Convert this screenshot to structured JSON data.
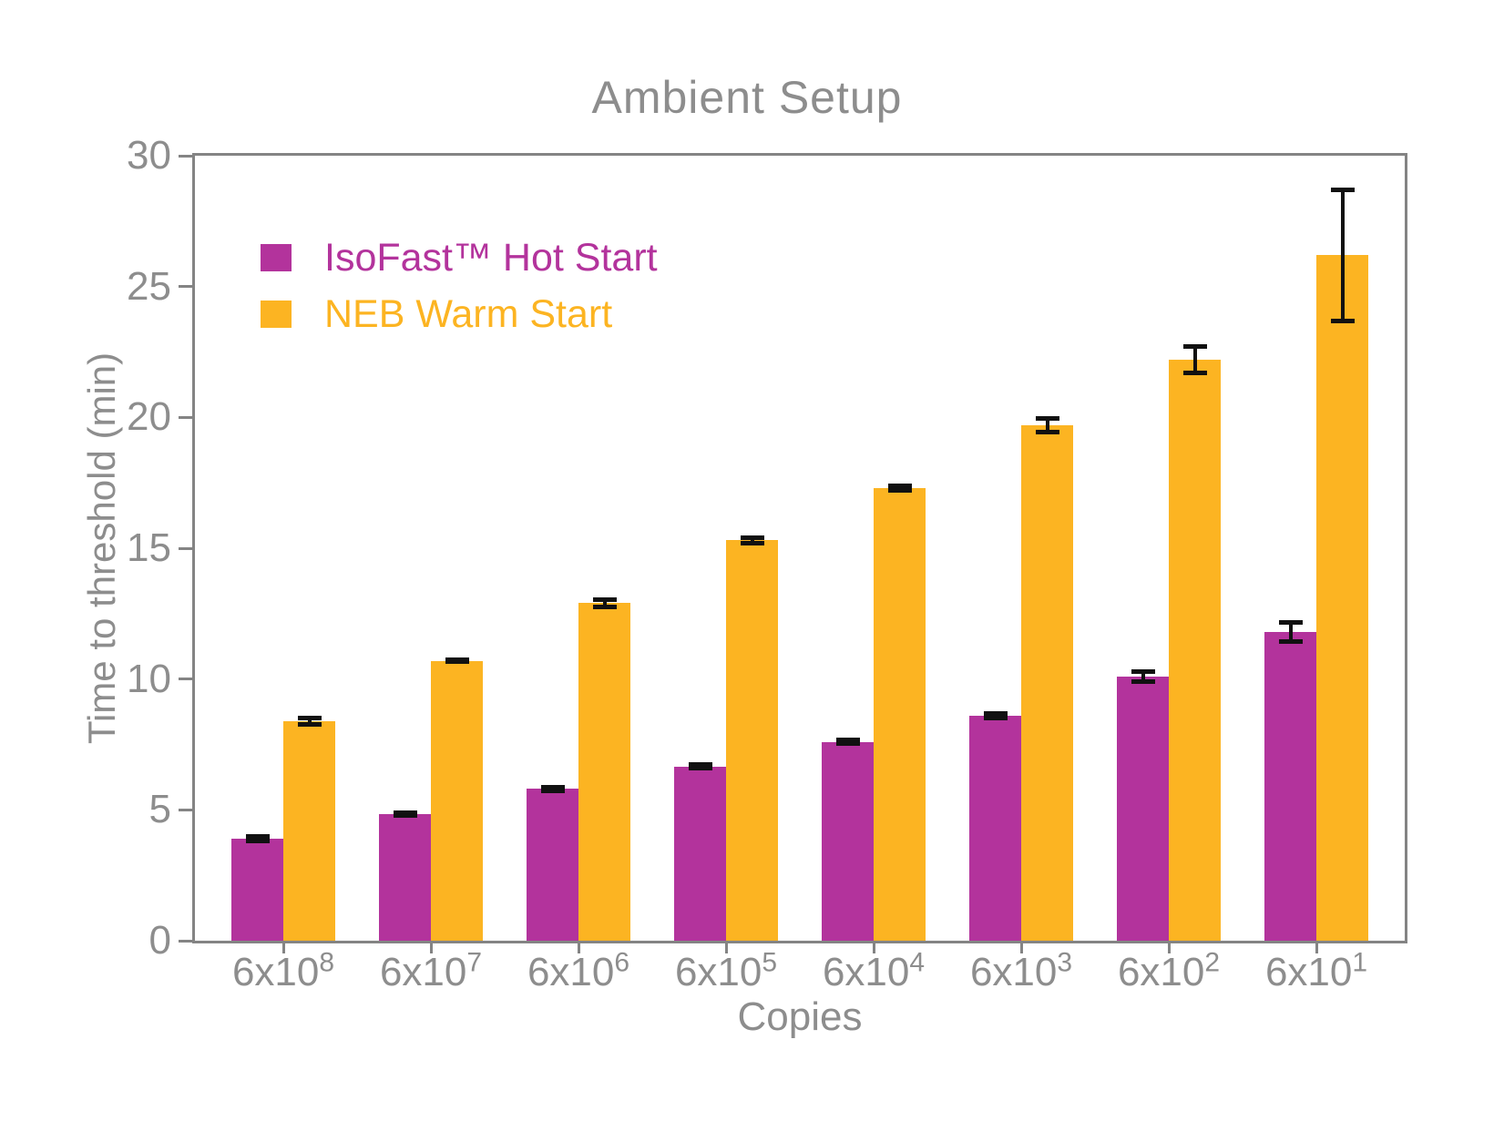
{
  "figure": {
    "background": "#ffffff",
    "text_color": "#8d8d8d",
    "axis_color": "#848484",
    "error_bar_color": "#111111"
  },
  "chart_data": {
    "type": "bar",
    "title": "Ambient Setup",
    "xlabel": "Copies",
    "ylabel": "Time to threshold (min)",
    "ylim": [
      0,
      30
    ],
    "yticks": [
      0,
      5,
      10,
      15,
      20,
      25,
      30
    ],
    "grid": false,
    "legend_position": "upper-left-inside",
    "legend_frame": false,
    "categories": [
      "6x10^8",
      "6x10^7",
      "6x10^6",
      "6x10^5",
      "6x10^4",
      "6x10^3",
      "6x10^2",
      "6x10^1"
    ],
    "categories_display": [
      {
        "base": "6x10",
        "exp": "8"
      },
      {
        "base": "6x10",
        "exp": "7"
      },
      {
        "base": "6x10",
        "exp": "6"
      },
      {
        "base": "6x10",
        "exp": "5"
      },
      {
        "base": "6x10",
        "exp": "4"
      },
      {
        "base": "6x10",
        "exp": "3"
      },
      {
        "base": "6x10",
        "exp": "2"
      },
      {
        "base": "6x10",
        "exp": "1"
      }
    ],
    "series": [
      {
        "name": "IsoFast™ Hot Start",
        "color": "#b3339c",
        "values": [
          3.9,
          4.85,
          5.8,
          6.65,
          7.6,
          8.6,
          10.1,
          11.8
        ],
        "errors": [
          0.1,
          0.05,
          0.06,
          0.07,
          0.08,
          0.08,
          0.2,
          0.35
        ]
      },
      {
        "name": "NEB Warm Start",
        "color": "#fcb422",
        "values": [
          8.4,
          10.7,
          12.9,
          15.3,
          17.3,
          19.7,
          22.2,
          26.2
        ],
        "errors": [
          0.12,
          0.05,
          0.15,
          0.1,
          0.08,
          0.25,
          0.5,
          2.5
        ]
      }
    ]
  }
}
